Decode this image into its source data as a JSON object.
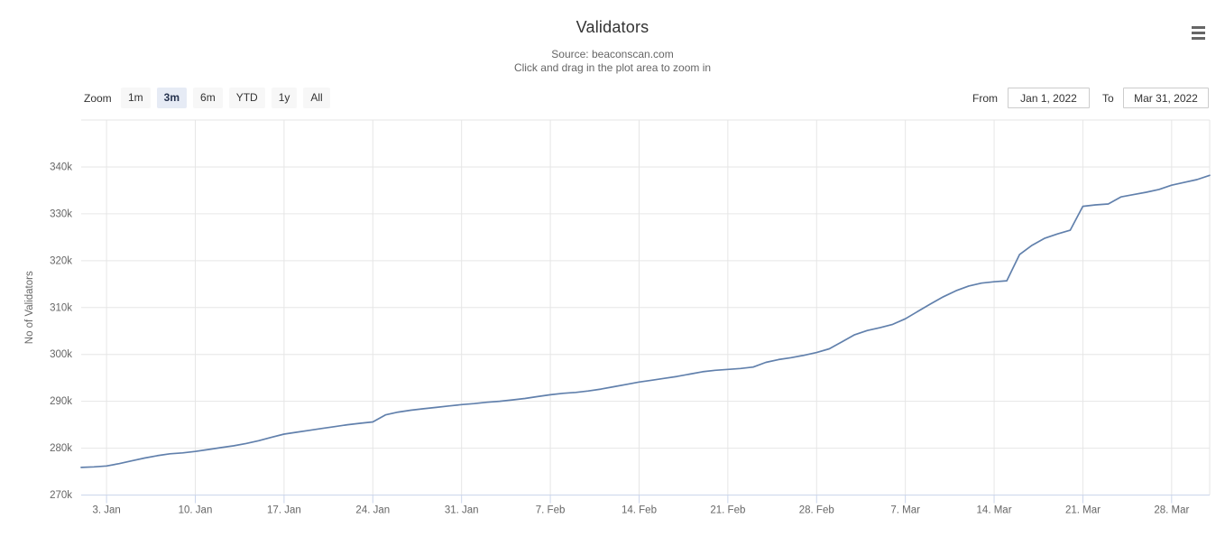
{
  "header": {
    "title": "Validators",
    "subtitle_line1": "Source: beaconscan.com",
    "subtitle_line2": "Click and drag in the plot area to zoom in"
  },
  "range_selector": {
    "zoom_label": "Zoom",
    "buttons": [
      {
        "label": "1m",
        "selected": false
      },
      {
        "label": "3m",
        "selected": true
      },
      {
        "label": "6m",
        "selected": false
      },
      {
        "label": "YTD",
        "selected": false
      },
      {
        "label": "1y",
        "selected": false
      },
      {
        "label": "All",
        "selected": false
      }
    ],
    "from_label": "From",
    "from_value": "Jan 1, 2022",
    "to_label": "To",
    "to_value": "Mar 31, 2022"
  },
  "icons": {
    "context_menu": "hamburger-menu-icon"
  },
  "colors": {
    "series_line": "#6180ac",
    "grid": "#e6e6e6",
    "axis_line": "#ccd6eb",
    "tick": "#ccd6eb",
    "axis_text": "#666666",
    "title_text": "#333333",
    "subtitle_text": "#666666",
    "button_bg": "#f7f7f7",
    "button_selected_bg": "#e6ebf5"
  },
  "chart_data": {
    "type": "line",
    "title": "Validators",
    "xlabel": "",
    "ylabel": "No of Validators",
    "grid": true,
    "legend_position": "none",
    "ylim": [
      270,
      350
    ],
    "y_ticks": [
      270,
      280,
      290,
      300,
      310,
      320,
      330,
      340
    ],
    "y_tick_labels": [
      "270k",
      "280k",
      "290k",
      "300k",
      "310k",
      "320k",
      "330k",
      "340k"
    ],
    "x_ticks": [
      {
        "day": 3,
        "label": "3. Jan"
      },
      {
        "day": 10,
        "label": "10. Jan"
      },
      {
        "day": 17,
        "label": "17. Jan"
      },
      {
        "day": 24,
        "label": "24. Jan"
      },
      {
        "day": 31,
        "label": "31. Jan"
      },
      {
        "day": 38,
        "label": "7. Feb"
      },
      {
        "day": 45,
        "label": "14. Feb"
      },
      {
        "day": 52,
        "label": "21. Feb"
      },
      {
        "day": 59,
        "label": "28. Feb"
      },
      {
        "day": 66,
        "label": "7. Mar"
      },
      {
        "day": 73,
        "label": "14. Mar"
      },
      {
        "day": 80,
        "label": "21. Mar"
      },
      {
        "day": 87,
        "label": "28. Mar"
      }
    ],
    "series": [
      {
        "name": "No of Validators",
        "start": "Jan 1, 2022",
        "end": "Mar 31, 2022",
        "interval": "daily",
        "unit": "thousands",
        "values_k": [
          275.9,
          276.0,
          276.2,
          276.7,
          277.3,
          277.9,
          278.4,
          278.8,
          279.0,
          279.3,
          279.7,
          280.1,
          280.5,
          281.0,
          281.6,
          282.3,
          283.0,
          283.4,
          283.8,
          284.2,
          284.6,
          285.0,
          285.3,
          285.6,
          287.1,
          287.7,
          288.1,
          288.4,
          288.7,
          289.0,
          289.3,
          289.5,
          289.8,
          290.0,
          290.3,
          290.6,
          291.0,
          291.4,
          291.7,
          291.9,
          292.2,
          292.6,
          293.1,
          293.6,
          294.1,
          294.5,
          294.9,
          295.3,
          295.8,
          296.3,
          296.6,
          296.8,
          297.0,
          297.3,
          298.3,
          298.9,
          299.3,
          299.8,
          300.4,
          301.2,
          302.7,
          304.2,
          305.1,
          305.7,
          306.4,
          307.6,
          309.2,
          310.8,
          312.3,
          313.6,
          314.6,
          315.2,
          315.5,
          315.7,
          321.3,
          323.3,
          324.8,
          325.7,
          326.5,
          331.6,
          331.9,
          332.1,
          333.6,
          334.1,
          334.6,
          335.2,
          336.1,
          336.7,
          337.3,
          338.2
        ]
      }
    ]
  }
}
